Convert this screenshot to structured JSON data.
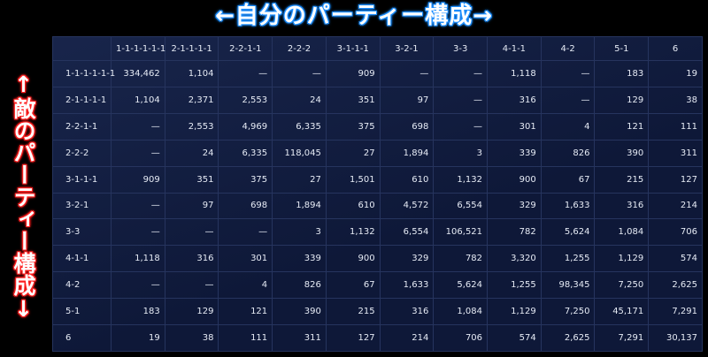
{
  "titles": {
    "top": "←自分のパーティー構成→",
    "side": "↑敵のパーティー構成↓"
  },
  "chart_data": {
    "type": "table",
    "columns": [
      "1-1-1-1-1-1",
      "2-1-1-1-1",
      "2-2-1-1",
      "2-2-2",
      "3-1-1-1",
      "3-2-1",
      "3-3",
      "4-1-1",
      "4-2",
      "5-1",
      "6"
    ],
    "rows": [
      {
        "label": "1-1-1-1-1-1",
        "values": [
          "334,462",
          "1,104",
          "—",
          "—",
          "909",
          "—",
          "—",
          "1,118",
          "—",
          "183",
          "19"
        ]
      },
      {
        "label": "2-1-1-1-1",
        "values": [
          "1,104",
          "2,371",
          "2,553",
          "24",
          "351",
          "97",
          "—",
          "316",
          "—",
          "129",
          "38"
        ]
      },
      {
        "label": "2-2-1-1",
        "values": [
          "—",
          "2,553",
          "4,969",
          "6,335",
          "375",
          "698",
          "—",
          "301",
          "4",
          "121",
          "111"
        ]
      },
      {
        "label": "2-2-2",
        "values": [
          "—",
          "24",
          "6,335",
          "118,045",
          "27",
          "1,894",
          "3",
          "339",
          "826",
          "390",
          "311"
        ]
      },
      {
        "label": "3-1-1-1",
        "values": [
          "909",
          "351",
          "375",
          "27",
          "1,501",
          "610",
          "1,132",
          "900",
          "67",
          "215",
          "127"
        ]
      },
      {
        "label": "3-2-1",
        "values": [
          "—",
          "97",
          "698",
          "1,894",
          "610",
          "4,572",
          "6,554",
          "329",
          "1,633",
          "316",
          "214"
        ]
      },
      {
        "label": "3-3",
        "values": [
          "—",
          "—",
          "—",
          "3",
          "1,132",
          "6,554",
          "106,521",
          "782",
          "5,624",
          "1,084",
          "706"
        ]
      },
      {
        "label": "4-1-1",
        "values": [
          "1,118",
          "316",
          "301",
          "339",
          "900",
          "329",
          "782",
          "3,320",
          "1,255",
          "1,129",
          "574"
        ]
      },
      {
        "label": "4-2",
        "values": [
          "—",
          "—",
          "4",
          "826",
          "67",
          "1,633",
          "5,624",
          "1,255",
          "98,345",
          "7,250",
          "2,625"
        ]
      },
      {
        "label": "5-1",
        "values": [
          "183",
          "129",
          "121",
          "390",
          "215",
          "316",
          "1,084",
          "1,129",
          "7,250",
          "45,171",
          "7,291"
        ]
      },
      {
        "label": "6",
        "values": [
          "19",
          "38",
          "111",
          "311",
          "127",
          "214",
          "706",
          "574",
          "2,625",
          "7,291",
          "30,137"
        ]
      }
    ]
  },
  "colors": {
    "background": "#000000",
    "grid_background": "#0e1838",
    "top_title_outline": "#1e8fff",
    "side_title_outline": "#ff2020"
  }
}
